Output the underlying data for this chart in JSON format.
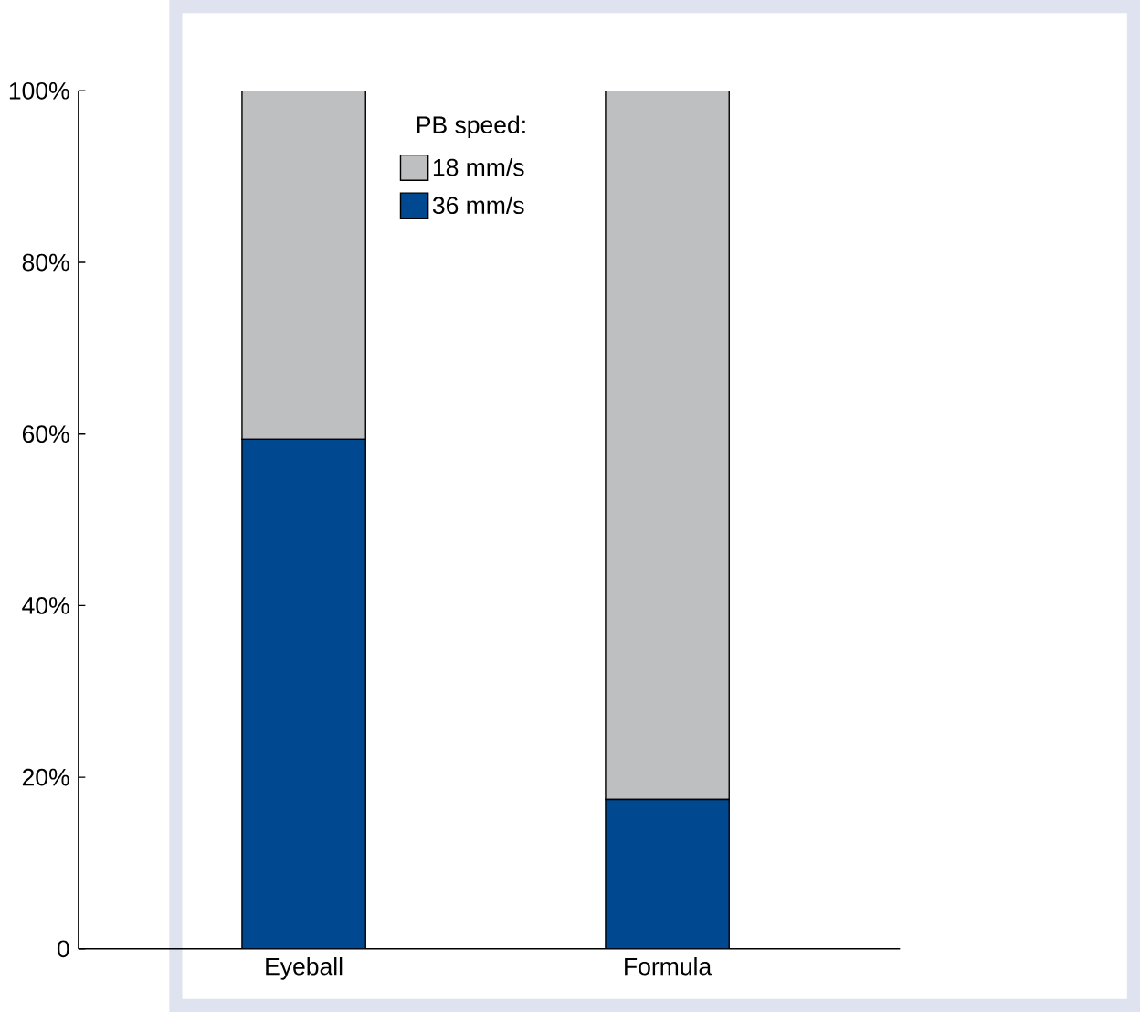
{
  "chart_data": {
    "type": "bar",
    "stacked": true,
    "categories": [
      "Eyeball",
      "Formula"
    ],
    "series": [
      {
        "name": "36 mm/s",
        "color": "#004890",
        "values": [
          59.4,
          17.4
        ]
      },
      {
        "name": "18 mm/s",
        "color": "#bebfc1",
        "values": [
          40.6,
          82.6
        ]
      }
    ],
    "legend_title": "PB speed:",
    "legend": "top",
    "ylim": [
      0,
      100
    ],
    "yticks": [
      {
        "value": 0,
        "label": "0"
      },
      {
        "value": 20,
        "label": "20%"
      },
      {
        "value": 40,
        "label": "40%"
      },
      {
        "value": 60,
        "label": "60%"
      },
      {
        "value": 80,
        "label": "80%"
      },
      {
        "value": 100,
        "label": "100%"
      }
    ]
  }
}
